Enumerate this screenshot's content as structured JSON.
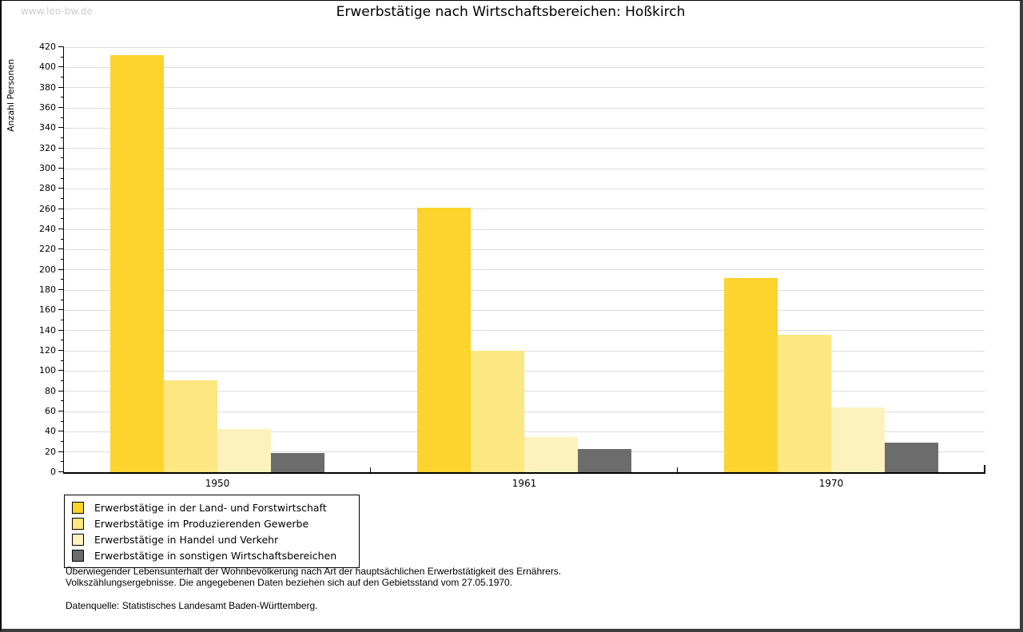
{
  "page": {
    "watermark": "www.leo-bw.de",
    "footnote_line1": "Überwiegender Lebensunterhalt der Wohnbevölkerung nach Art der hauptsächlichen Erwerbstätigkeit des Ernährers.",
    "footnote_line2": "Volkszählungsergebnisse. Die angegebenen Daten beziehen sich auf den Gebietsstand vom 27.05.1970.",
    "datasource": "Datenquelle: Statistisches Landesamt Baden-Württemberg."
  },
  "chart_data": {
    "type": "bar",
    "title": "Erwerbstätige nach Wirtschaftsbereichen: Hoßkirch",
    "ylabel": "Anzahl Personen",
    "xlabel": "",
    "categories": [
      "1950",
      "1961",
      "1970"
    ],
    "series": [
      {
        "name": "Erwerbstätige in der Land- und Forstwirtschaft",
        "color": "#FCD42D",
        "values": [
          412,
          261,
          192
        ]
      },
      {
        "name": "Erwerbstätige im Produzierenden Gewerbe",
        "color": "#FCE781",
        "values": [
          91,
          120,
          136
        ]
      },
      {
        "name": "Erwerbstätige in Handel und Verkehr",
        "color": "#FCF2BE",
        "values": [
          43,
          35,
          64
        ]
      },
      {
        "name": "Erwerbstätige in sonstigen Wirtschaftsbereichen",
        "color": "#6C6C6C",
        "values": [
          19,
          23,
          29
        ]
      }
    ],
    "ylim": [
      0,
      420
    ],
    "ytick_step_major": 20,
    "ytick_step_minor": 10,
    "grid": true,
    "legend_position": "bottom-left",
    "colors": {
      "grid": "#dddddd",
      "axis": "#000000",
      "background": "#ffffff",
      "watermark": "#cccccc"
    }
  }
}
